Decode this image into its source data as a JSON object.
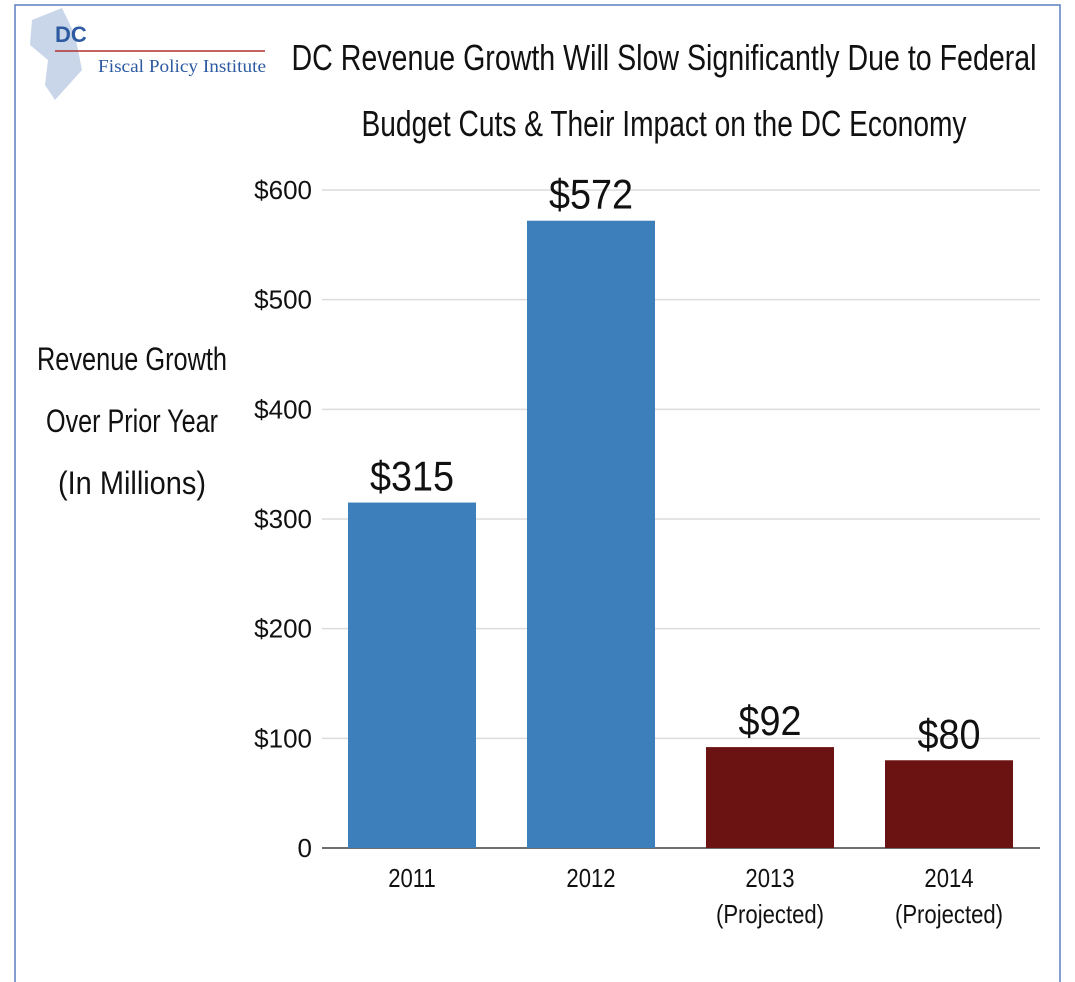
{
  "chart_data": {
    "type": "bar",
    "logo": {
      "abbr": "DC",
      "name": "Fiscal Policy Institute"
    },
    "title": [
      "DC Revenue Growth Will Slow Significantly Due to Federal",
      "Budget Cuts & Their Impact on the DC Economy"
    ],
    "y_label": [
      "Revenue Growth",
      "Over Prior Year",
      "(In Millions)"
    ],
    "categories": [
      "2011",
      "2012",
      "2013\n(Projected)",
      "2014\n(Projected)"
    ],
    "values": [
      315,
      572,
      92,
      80
    ],
    "value_labels": [
      "$315",
      "$572",
      "$92",
      "$80"
    ],
    "colors": [
      "#3d7fba",
      "#3d7fba",
      "#6b1313",
      "#6b1313"
    ],
    "ylim": [
      0,
      600
    ],
    "yticks": [
      0,
      {
        "value": 100,
        "label": "$100"
      },
      {
        "value": 200,
        "label": "$200"
      },
      {
        "value": 300,
        "label": "$300"
      },
      {
        "value": 400,
        "label": "$400"
      },
      {
        "value": 500,
        "label": "$500"
      },
      {
        "value": 600,
        "label": "$600"
      }
    ],
    "grid": true
  }
}
